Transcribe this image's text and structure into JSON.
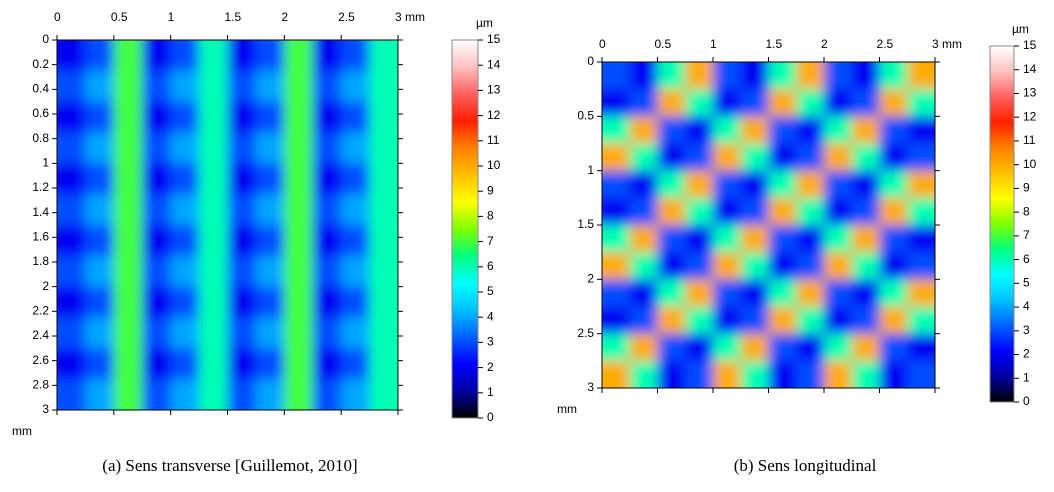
{
  "chart_data": [
    {
      "type": "heatmap",
      "caption": "(a) Sens transverse [Guillemot, 2010]",
      "y_label": "mm",
      "colorbar_label": "µm",
      "xlim": [
        0,
        3
      ],
      "ylim": [
        0,
        3
      ],
      "xticks": [
        0,
        0.5,
        1,
        1.5,
        2,
        2.5,
        {
          "value": 3,
          "label": "3 mm"
        }
      ],
      "yticks": [
        0,
        0.2,
        0.4,
        0.6,
        0.8,
        1,
        1.2,
        1.4,
        1.6,
        1.8,
        2,
        2.2,
        2.4,
        2.6,
        2.8,
        3
      ],
      "clim": [
        0,
        15
      ],
      "cticks": [
        0,
        1,
        2,
        3,
        4,
        5,
        6,
        7,
        8,
        9,
        10,
        11,
        12,
        13,
        14,
        15
      ],
      "colorscale": [
        "#000000",
        "#0000a0",
        "#0000ff",
        "#0060ff",
        "#00c0ff",
        "#00ffff",
        "#00ff80",
        "#80ff00",
        "#ffff00",
        "#ffc000",
        "#ff8000",
        "#ff2000",
        "#ff6060",
        "#ffc0c0",
        "#ffffff"
      ],
      "z": [
        [
          2,
          3,
          7,
          2,
          3,
          6,
          2,
          3,
          7,
          2,
          3,
          6
        ],
        [
          3,
          4,
          7,
          3,
          4,
          6,
          3,
          4,
          7,
          3,
          4,
          6
        ],
        [
          2,
          3,
          7,
          2,
          3,
          6,
          2,
          3,
          7,
          2,
          3,
          6
        ],
        [
          3,
          4,
          7,
          3,
          4,
          6,
          3,
          4,
          7,
          3,
          4,
          6
        ],
        [
          2,
          3,
          7,
          2,
          3,
          6,
          2,
          3,
          7,
          2,
          3,
          6
        ],
        [
          3,
          4,
          7,
          3,
          4,
          6,
          3,
          4,
          7,
          3,
          4,
          6
        ],
        [
          2,
          3,
          7,
          2,
          3,
          6,
          2,
          3,
          7,
          2,
          3,
          6
        ],
        [
          3,
          4,
          7,
          3,
          4,
          6,
          3,
          4,
          7,
          3,
          4,
          6
        ],
        [
          2,
          3,
          7,
          2,
          3,
          6,
          2,
          3,
          7,
          2,
          3,
          6
        ],
        [
          3,
          4,
          7,
          3,
          4,
          6,
          3,
          4,
          7,
          3,
          4,
          6
        ],
        [
          2,
          3,
          7,
          2,
          3,
          6,
          2,
          3,
          7,
          2,
          3,
          6
        ],
        [
          3,
          4,
          7,
          3,
          4,
          6,
          3,
          4,
          7,
          3,
          4,
          6
        ]
      ]
    },
    {
      "type": "heatmap",
      "caption": "(b) Sens longitudinal",
      "y_label": "mm",
      "colorbar_label": "µm",
      "xlim": [
        0,
        3
      ],
      "ylim": [
        0,
        3
      ],
      "xticks": [
        0,
        0.5,
        1,
        1.5,
        2,
        2.5,
        {
          "value": 3,
          "label": "3 mm"
        }
      ],
      "yticks": [
        0,
        0.5,
        1,
        1.5,
        2,
        2.5,
        3
      ],
      "clim": [
        0,
        15
      ],
      "cticks": [
        0,
        1,
        2,
        3,
        4,
        5,
        6,
        7,
        8,
        9,
        10,
        11,
        12,
        13,
        14,
        15
      ],
      "colorscale": [
        "#000000",
        "#0000a0",
        "#0000ff",
        "#0060ff",
        "#00c0ff",
        "#00ffff",
        "#00ff80",
        "#80ff00",
        "#ffff00",
        "#ffc000",
        "#ff8000",
        "#ff2000",
        "#ff6060",
        "#ffc0c0",
        "#ffffff"
      ],
      "z": [
        [
          3,
          2,
          6,
          10,
          3,
          2,
          6,
          10,
          3,
          2,
          6,
          10
        ],
        [
          2,
          3,
          10,
          6,
          2,
          3,
          10,
          6,
          2,
          3,
          10,
          6
        ],
        [
          6,
          10,
          3,
          2,
          6,
          10,
          3,
          2,
          6,
          10,
          3,
          2
        ],
        [
          10,
          6,
          2,
          3,
          10,
          6,
          2,
          3,
          10,
          6,
          2,
          3
        ],
        [
          3,
          2,
          6,
          10,
          3,
          2,
          6,
          10,
          3,
          2,
          6,
          10
        ],
        [
          2,
          3,
          10,
          6,
          2,
          3,
          10,
          6,
          2,
          3,
          10,
          6
        ],
        [
          6,
          10,
          3,
          2,
          6,
          10,
          3,
          2,
          6,
          10,
          3,
          2
        ],
        [
          10,
          6,
          2,
          3,
          10,
          6,
          2,
          3,
          10,
          6,
          2,
          3
        ],
        [
          3,
          2,
          6,
          10,
          3,
          2,
          6,
          10,
          3,
          2,
          6,
          10
        ],
        [
          2,
          3,
          10,
          6,
          2,
          3,
          10,
          6,
          2,
          3,
          10,
          6
        ],
        [
          6,
          10,
          3,
          2,
          6,
          10,
          3,
          2,
          6,
          10,
          3,
          2
        ],
        [
          10,
          6,
          2,
          3,
          10,
          6,
          2,
          3,
          10,
          6,
          2,
          3
        ]
      ]
    }
  ]
}
